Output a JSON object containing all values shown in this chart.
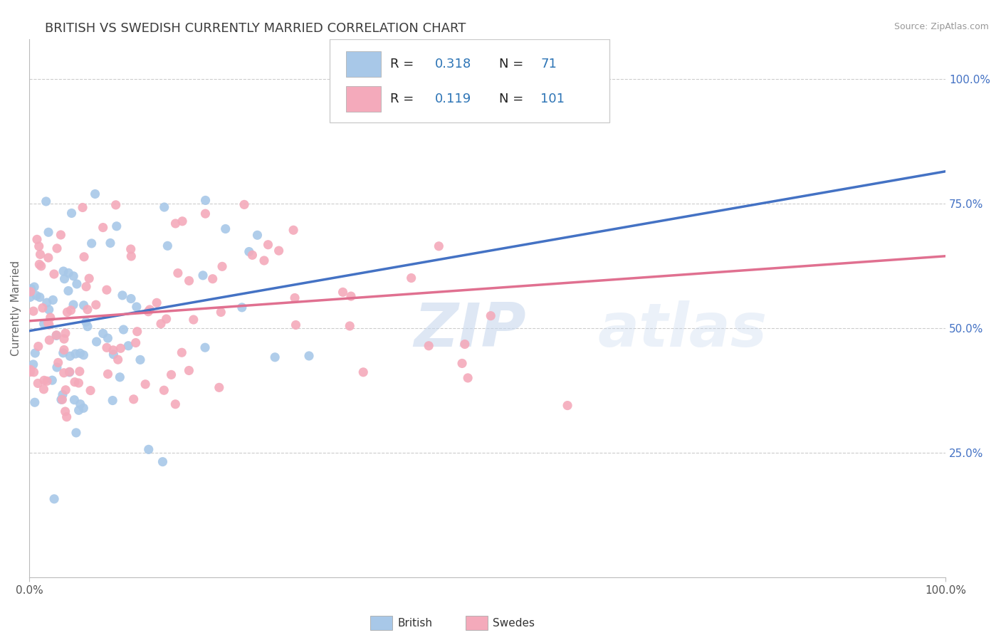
{
  "title": "BRITISH VS SWEDISH CURRENTLY MARRIED CORRELATION CHART",
  "source": "Source: ZipAtlas.com",
  "ylabel": "Currently Married",
  "right_ytick_labels": [
    "25.0%",
    "50.0%",
    "75.0%",
    "100.0%"
  ],
  "right_ytick_values": [
    0.25,
    0.5,
    0.75,
    1.0
  ],
  "xmin": 0.0,
  "xmax": 1.0,
  "ymin": 0.0,
  "ymax": 1.08,
  "british_R": 0.318,
  "british_N": 71,
  "swedes_R": 0.119,
  "swedes_N": 101,
  "british_color": "#A8C8E8",
  "swedes_color": "#F4AABB",
  "british_line_color": "#4472C4",
  "swedes_line_color": "#E07090",
  "title_fontsize": 13,
  "legend_R_color": "#2E75B6",
  "legend_N_color": "#2E75B6",
  "watermark": "ZIPatlas",
  "background_color": "#FFFFFF",
  "grid_color": "#CCCCCC",
  "brit_line_x0": 0.0,
  "brit_line_y0": 0.495,
  "brit_line_x1": 1.0,
  "brit_line_y1": 0.815,
  "swed_line_x0": 0.0,
  "swed_line_y0": 0.515,
  "swed_line_x1": 1.0,
  "swed_line_y1": 0.645
}
